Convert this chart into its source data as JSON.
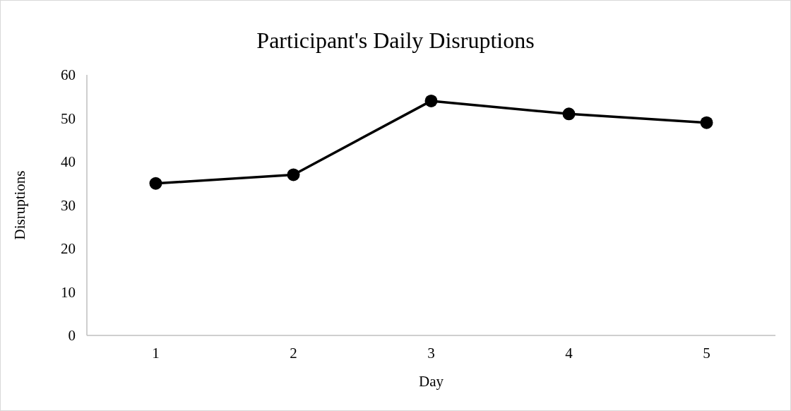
{
  "chart_data": {
    "type": "line",
    "title": "Participant's Daily Disruptions",
    "xlabel": "Day",
    "ylabel": "Disruptions",
    "categories": [
      "1",
      "2",
      "3",
      "4",
      "5"
    ],
    "series": [
      {
        "color": "#000000",
        "values": [
          35,
          37,
          54,
          51,
          49
        ]
      }
    ],
    "ylim": [
      0,
      60
    ],
    "yticks": [
      0,
      10,
      20,
      30,
      40,
      50,
      60
    ],
    "grid": false,
    "marker": "circle",
    "line_style": "solid"
  }
}
